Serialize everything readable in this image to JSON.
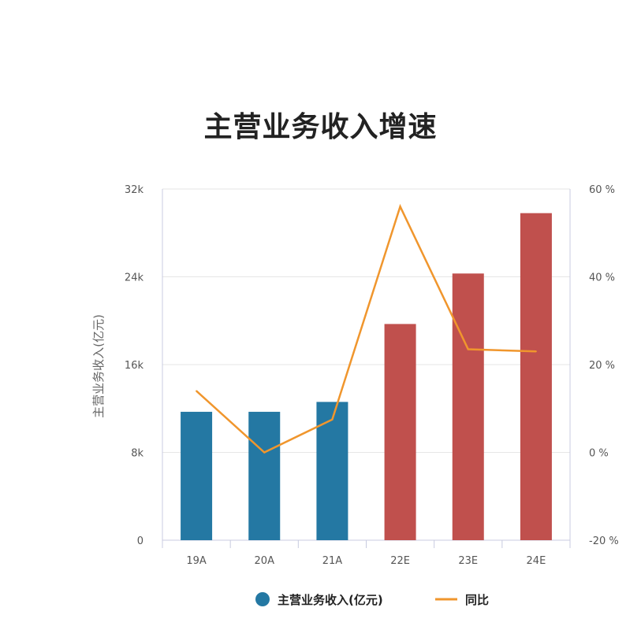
{
  "chart_data": {
    "type": "bar",
    "title": "主营业务收入增速",
    "ylabel": "主营业务收入(亿元)",
    "categories": [
      "19A",
      "20A",
      "21A",
      "22E",
      "23E",
      "24E"
    ],
    "y_ticks": [
      "0",
      "8k",
      "16k",
      "24k",
      "32k"
    ],
    "y2_ticks": [
      "-20 %",
      "0 %",
      "20 %",
      "40 %",
      "60 %"
    ],
    "ylim": [
      0,
      32000
    ],
    "y2lim": [
      -20,
      60
    ],
    "grid": true,
    "legend_position": "bottom",
    "series": [
      {
        "name": "主营业务收入(亿元)",
        "type": "bar",
        "axis": "left",
        "values": [
          11700,
          11700,
          12600,
          19700,
          24300,
          29800
        ],
        "actual_color": "#2478a3",
        "estimate_color": "#c0504d"
      },
      {
        "name": "同比",
        "type": "line",
        "axis": "right",
        "values": [
          14,
          0,
          7.5,
          56,
          23.5,
          23
        ],
        "color": "#f0962d"
      }
    ]
  }
}
